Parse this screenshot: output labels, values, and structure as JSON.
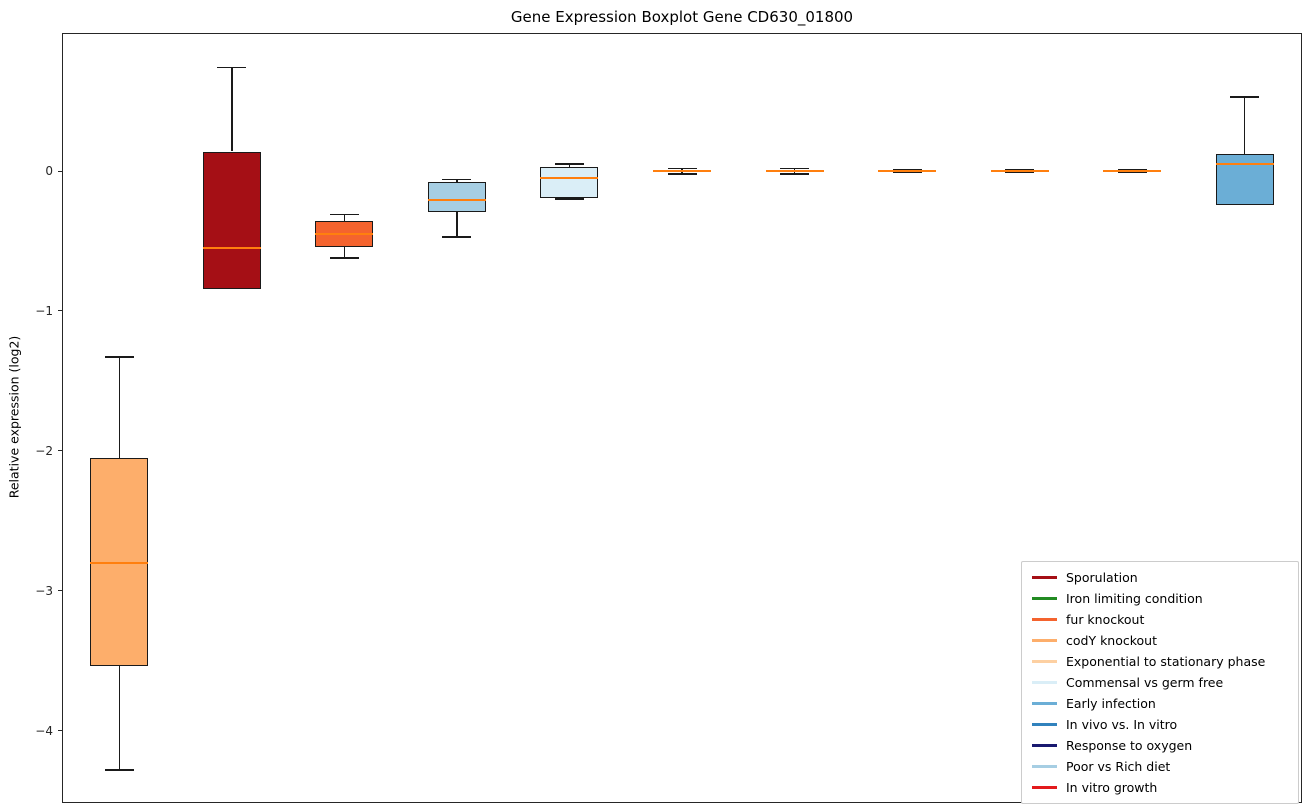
{
  "chart_data": {
    "type": "boxplot",
    "title": "Gene Expression Boxplot Gene CD630_01800",
    "ylabel": "Relative expression (log2)",
    "ylim": [
      -4.51,
      0.98
    ],
    "yticks": [
      0,
      -1,
      -2,
      -3,
      -4
    ],
    "grid": false,
    "legend_position": "lower right",
    "median_color": "#ff7f0e",
    "boxes": [
      {
        "name": "codY knockout",
        "color": "#fdae6b",
        "whislo": -4.28,
        "q1": -3.54,
        "med": -2.8,
        "q3": -2.05,
        "whishi": -1.33
      },
      {
        "name": "Sporulation",
        "color": "#a50f15",
        "whislo": -0.84,
        "q1": -0.84,
        "med": -0.55,
        "q3": 0.14,
        "whishi": 0.74
      },
      {
        "name": "fur knockout",
        "color": "#f4632e",
        "whislo": -0.62,
        "q1": -0.54,
        "med": -0.45,
        "q3": -0.36,
        "whishi": -0.31
      },
      {
        "name": "Poor vs Rich diet",
        "color": "#a6cee3",
        "whislo": -0.47,
        "q1": -0.29,
        "med": -0.21,
        "q3": -0.08,
        "whishi": -0.06
      },
      {
        "name": "Commensal vs germ free",
        "color": "#daeef7",
        "whislo": -0.2,
        "q1": -0.19,
        "med": -0.05,
        "q3": 0.03,
        "whishi": 0.05
      },
      {
        "name": "Exponential to stationary phase",
        "color": "#fdd0a2",
        "whislo": -0.02,
        "q1": -0.01,
        "med": 0.0,
        "q3": 0.01,
        "whishi": 0.02
      },
      {
        "name": "In vitro growth",
        "color": "#e31a1c",
        "whislo": -0.02,
        "q1": -0.01,
        "med": 0.0,
        "q3": 0.01,
        "whishi": 0.02
      },
      {
        "name": "Iron limiting condition",
        "color": "#228b22",
        "whislo": -0.01,
        "q1": -0.01,
        "med": 0.0,
        "q3": 0.01,
        "whishi": 0.01
      },
      {
        "name": "In vivo vs. In vitro",
        "color": "#3182bd",
        "whislo": -0.01,
        "q1": -0.01,
        "med": 0.0,
        "q3": 0.01,
        "whishi": 0.01
      },
      {
        "name": "Response to oxygen",
        "color": "#191970",
        "whislo": -0.01,
        "q1": -0.01,
        "med": 0.0,
        "q3": 0.01,
        "whishi": 0.01
      },
      {
        "name": "Early infection",
        "color": "#6baed6",
        "whislo": -0.24,
        "q1": -0.24,
        "med": 0.05,
        "q3": 0.12,
        "whishi": 0.53
      }
    ],
    "legend": [
      {
        "label": "Sporulation",
        "color": "#a50f15"
      },
      {
        "label": "Iron limiting condition",
        "color": "#228b22"
      },
      {
        "label": "fur knockout",
        "color": "#f4632e"
      },
      {
        "label": "codY knockout",
        "color": "#fdae6b"
      },
      {
        "label": "Exponential to stationary phase",
        "color": "#fdd0a2"
      },
      {
        "label": "Commensal vs germ free",
        "color": "#daeef7"
      },
      {
        "label": "Early infection",
        "color": "#6baed6"
      },
      {
        "label": "In vivo vs. In vitro",
        "color": "#3182bd"
      },
      {
        "label": "Response to oxygen",
        "color": "#191970"
      },
      {
        "label": "Poor vs Rich diet",
        "color": "#a6cee3"
      },
      {
        "label": "In vitro growth",
        "color": "#e31a1c"
      }
    ]
  }
}
